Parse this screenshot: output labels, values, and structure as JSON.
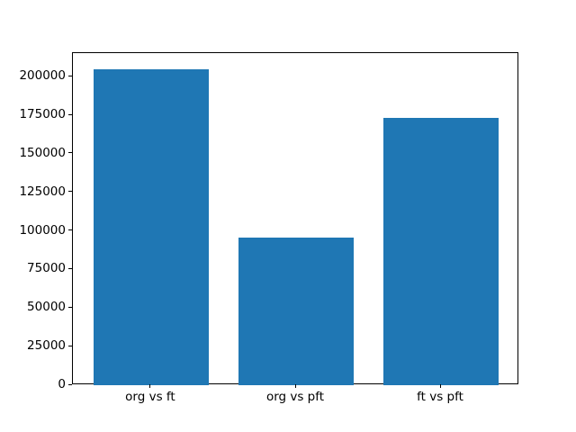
{
  "chart_data": {
    "type": "bar",
    "categories": [
      "org vs ft",
      "org vs pft",
      "ft vs pft"
    ],
    "values": [
      205000,
      95500,
      173500
    ],
    "title": "",
    "xlabel": "",
    "ylabel": "",
    "ylim": [
      0,
      215250
    ],
    "xlim": [
      -0.54,
      2.54
    ],
    "yticks": [
      0,
      25000,
      50000,
      75000,
      100000,
      125000,
      150000,
      175000,
      200000
    ],
    "bar_width": 0.8,
    "bar_color": "#1f77b4",
    "axis_color": "#000000",
    "background_color": "#ffffff",
    "grid": false,
    "legend": null
  }
}
